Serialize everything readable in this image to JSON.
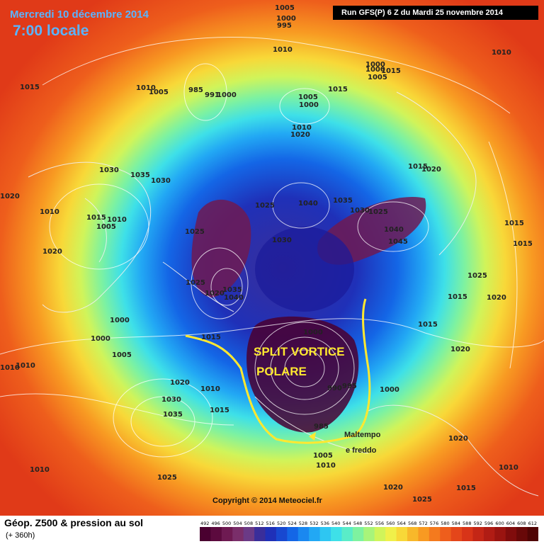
{
  "header": {
    "date": "Mercredi 10 décembre 2014",
    "time": "7:00 locale",
    "run": "Run GFS(P) 6 Z du Mardi 25 novembre 2014"
  },
  "annotations": {
    "line1": "SPLIT VORTICE",
    "line2": "POLARE",
    "side1": "Maltempo",
    "side2": "e freddo",
    "copyright": "Copyright © 2014 Meteociel.fr"
  },
  "footer": {
    "title": "Géop. Z500 & pression au sol",
    "subtitle": "(+ 360h)"
  },
  "isobar_labels": [
    "1005",
    "1000",
    "995",
    "1010",
    "1015",
    "1010",
    "1005",
    "985",
    "991",
    "1000",
    "1005",
    "1000",
    "1015",
    "1010",
    "1020",
    "1000",
    "1005",
    "1015",
    "1000",
    "1015",
    "1020",
    "1030",
    "1035",
    "1030",
    "1015",
    "1010",
    "1005",
    "1025",
    "1040",
    "1045",
    "1035",
    "1030",
    "1025",
    "1040",
    "1045",
    "1020",
    "1030",
    "1015",
    "1025",
    "1035",
    "1040",
    "1020",
    "1025",
    "1030",
    "1000",
    "1015",
    "1005",
    "1000",
    "990",
    "995",
    "985",
    "1005",
    "1010",
    "1015",
    "1020",
    "1025",
    "1030",
    "1035",
    "1010",
    "1015",
    "1020",
    "1010",
    "1015",
    "1020",
    "1025",
    "1030",
    "1035",
    "1015",
    "1010"
  ],
  "colorscale": {
    "ticks": [
      "492",
      "496",
      "500",
      "504",
      "508",
      "512",
      "516",
      "520",
      "524",
      "528",
      "532",
      "536",
      "540",
      "544",
      "548",
      "552",
      "556",
      "560",
      "564",
      "568",
      "572",
      "576",
      "580",
      "584",
      "588",
      "592",
      "596",
      "600",
      "604",
      "608",
      "612"
    ],
    "colors": [
      "#4a0030",
      "#5c0a3e",
      "#6e1a52",
      "#7a2e6a",
      "#6b3a86",
      "#3a2e9a",
      "#1f30b8",
      "#1848d0",
      "#1466e6",
      "#1a88f0",
      "#22a8f4",
      "#2ec6f2",
      "#3ee0e8",
      "#5aecc8",
      "#7ef2a0",
      "#a8f47a",
      "#d0f45a",
      "#f0f04a",
      "#f8d838",
      "#f8b82a",
      "#f89a22",
      "#f47a1e",
      "#ee5e1c",
      "#e4461a",
      "#d83418",
      "#c42616",
      "#b01c14",
      "#9a1410",
      "#800c0c",
      "#680808",
      "#500404"
    ]
  }
}
